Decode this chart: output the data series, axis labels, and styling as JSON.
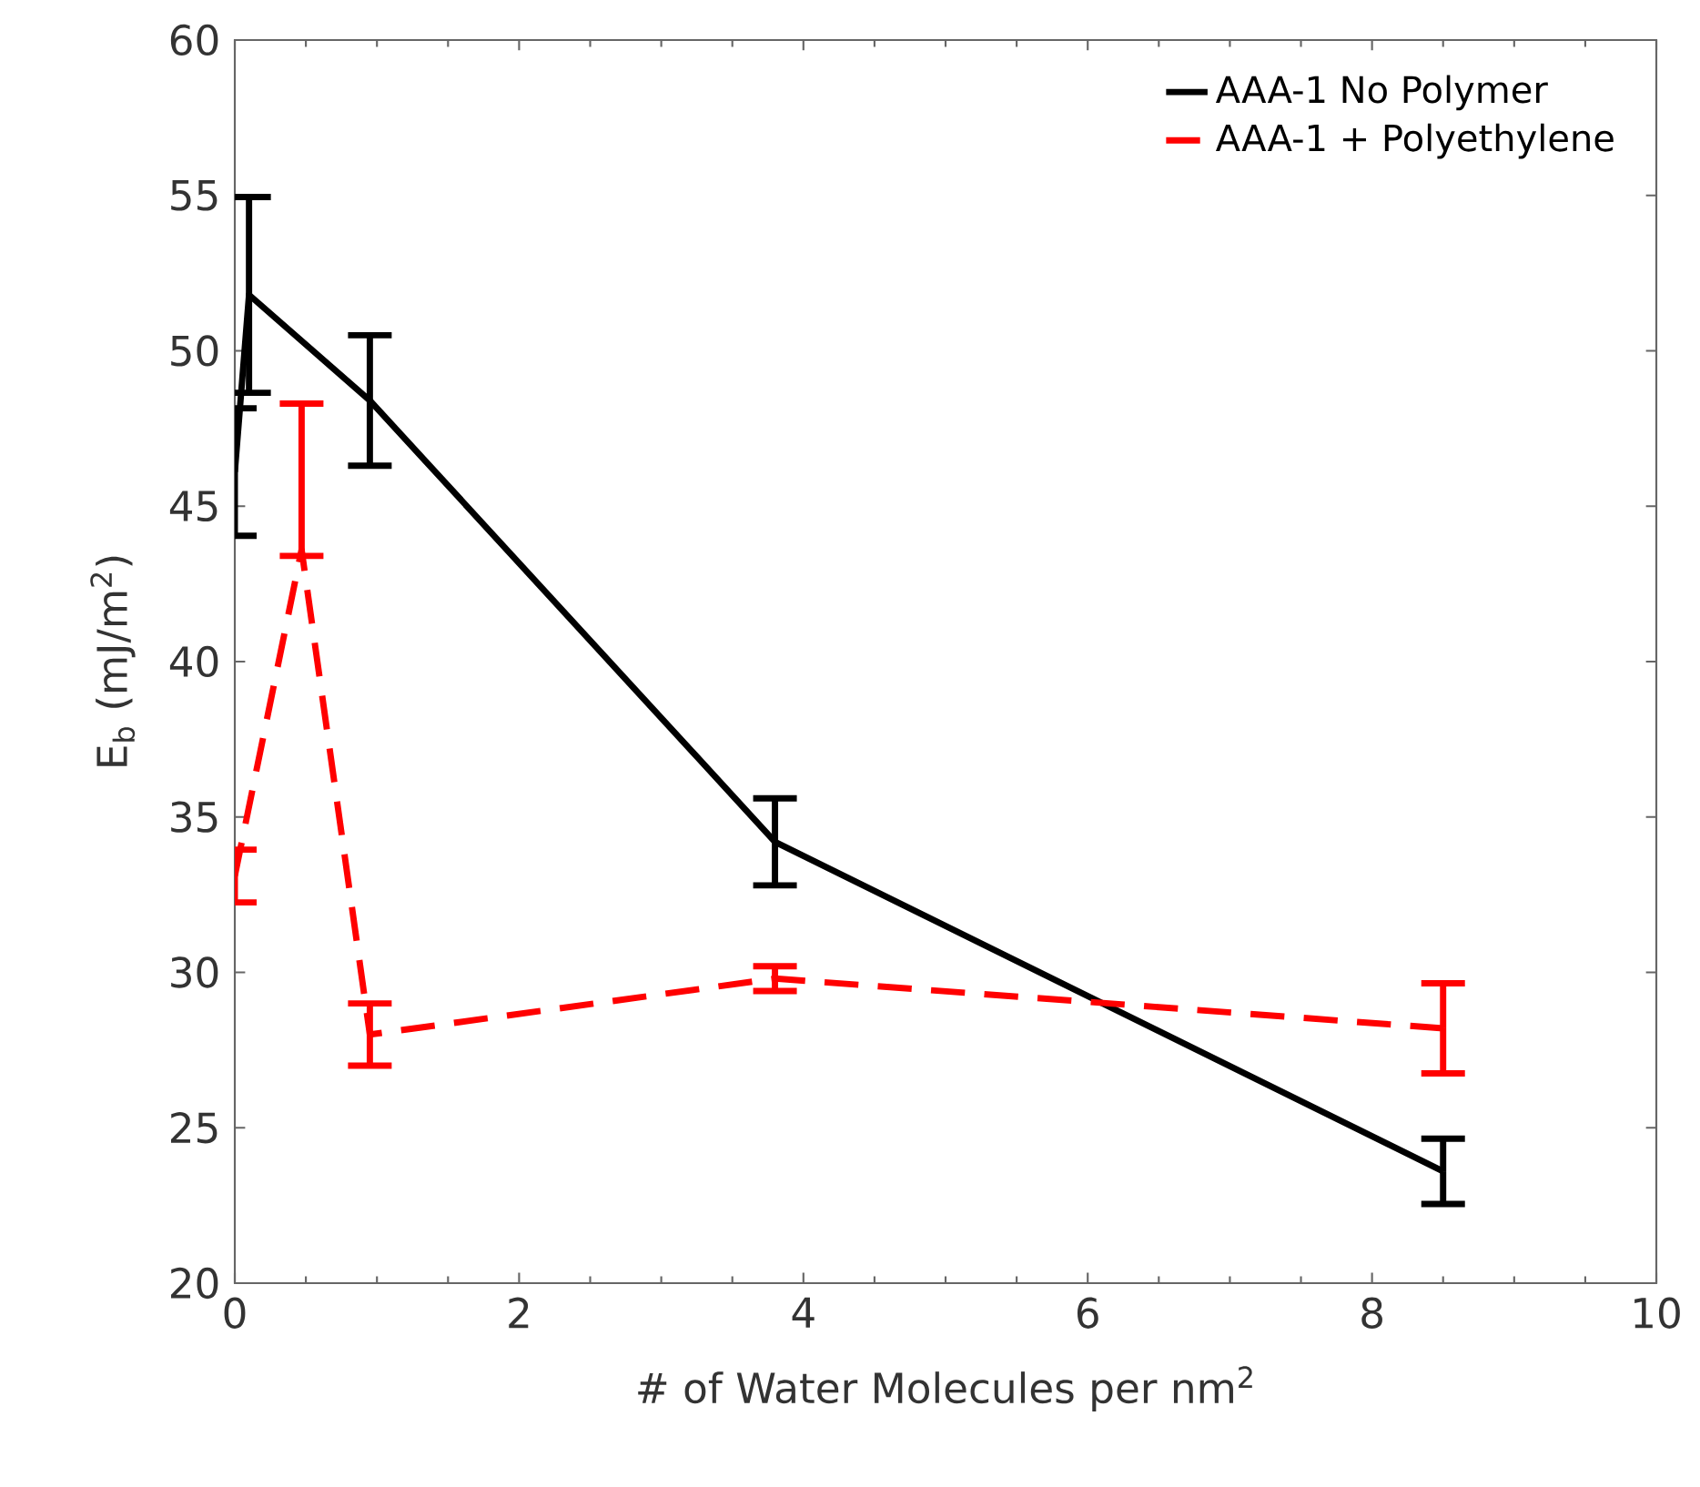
{
  "chart_data": {
    "type": "line",
    "xlabel": "# of Water Molecules per nm$^{2}$",
    "ylabel": "E$_{b}$ (mJ/m$^{2}$)",
    "xlim": [
      0,
      10
    ],
    "ylim": [
      20,
      60
    ],
    "xticks": [
      0,
      2,
      4,
      6,
      8,
      10
    ],
    "yticks": [
      20,
      25,
      30,
      35,
      40,
      45,
      50,
      55,
      60
    ],
    "legend": "top right",
    "marker": "none",
    "grid": false,
    "series": [
      {
        "name": "AAA-1 No Polymer",
        "color": "#000000",
        "line_style": "solid",
        "x": [
          0,
          0.1,
          0.95,
          3.8,
          8.5
        ],
        "values": [
          46.1,
          51.8,
          48.4,
          34.2,
          23.6
        ],
        "errors": [
          2.05,
          3.15,
          2.1,
          1.4,
          1.05
        ]
      },
      {
        "name": "AAA-1 + Polyethylene",
        "color": "#ff0000",
        "line_style": "dashed",
        "x": [
          0,
          0.47,
          0.95,
          3.8,
          8.5
        ],
        "values": [
          33.1,
          43.6,
          28.0,
          29.8,
          28.2
        ],
        "errors": [
          0.85,
          [
            43.4,
            48.3
          ],
          1.0,
          0.4,
          1.45
        ]
      }
    ]
  }
}
